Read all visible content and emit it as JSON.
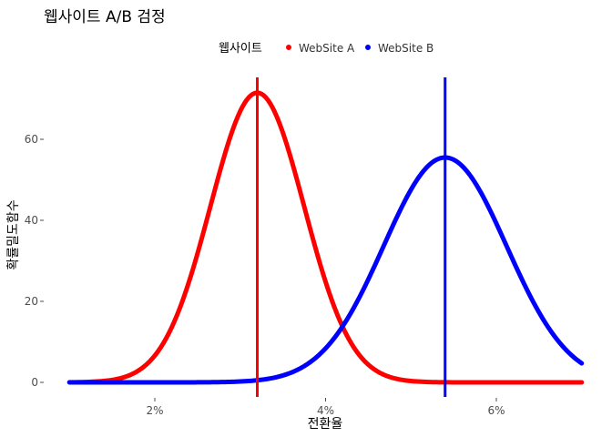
{
  "chart_data": {
    "type": "line",
    "title": "웹사이트 A/B 검정",
    "xlabel": "전환율",
    "ylabel": "확률밀도함수",
    "legend": {
      "title": "웹사이트",
      "position": "top",
      "entries": [
        {
          "label": "WebSite A",
          "color": "#ff0000"
        },
        {
          "label": "WebSite B",
          "color": "#0000ff"
        }
      ]
    },
    "xlim": [
      1.0,
      7.0
    ],
    "ylim": [
      0,
      75
    ],
    "x_ticks": [
      {
        "value": 2,
        "label": "2%"
      },
      {
        "value": 4,
        "label": "4%"
      },
      {
        "value": 6,
        "label": "6%"
      }
    ],
    "y_ticks": [
      {
        "value": 0,
        "label": "0"
      },
      {
        "value": 20,
        "label": "20"
      },
      {
        "value": 40,
        "label": "40"
      },
      {
        "value": 60,
        "label": "60"
      }
    ],
    "grid": false,
    "series": [
      {
        "name": "WebSite A",
        "color": "#ff0000",
        "distribution": {
          "mean": 3.2,
          "sd": 0.55,
          "peak": 71.5
        },
        "vline": 3.2
      },
      {
        "name": "WebSite B",
        "color": "#0000ff",
        "distribution": {
          "mean": 5.4,
          "sd": 0.72,
          "peak": 55.5
        },
        "vline": 5.4
      }
    ]
  }
}
